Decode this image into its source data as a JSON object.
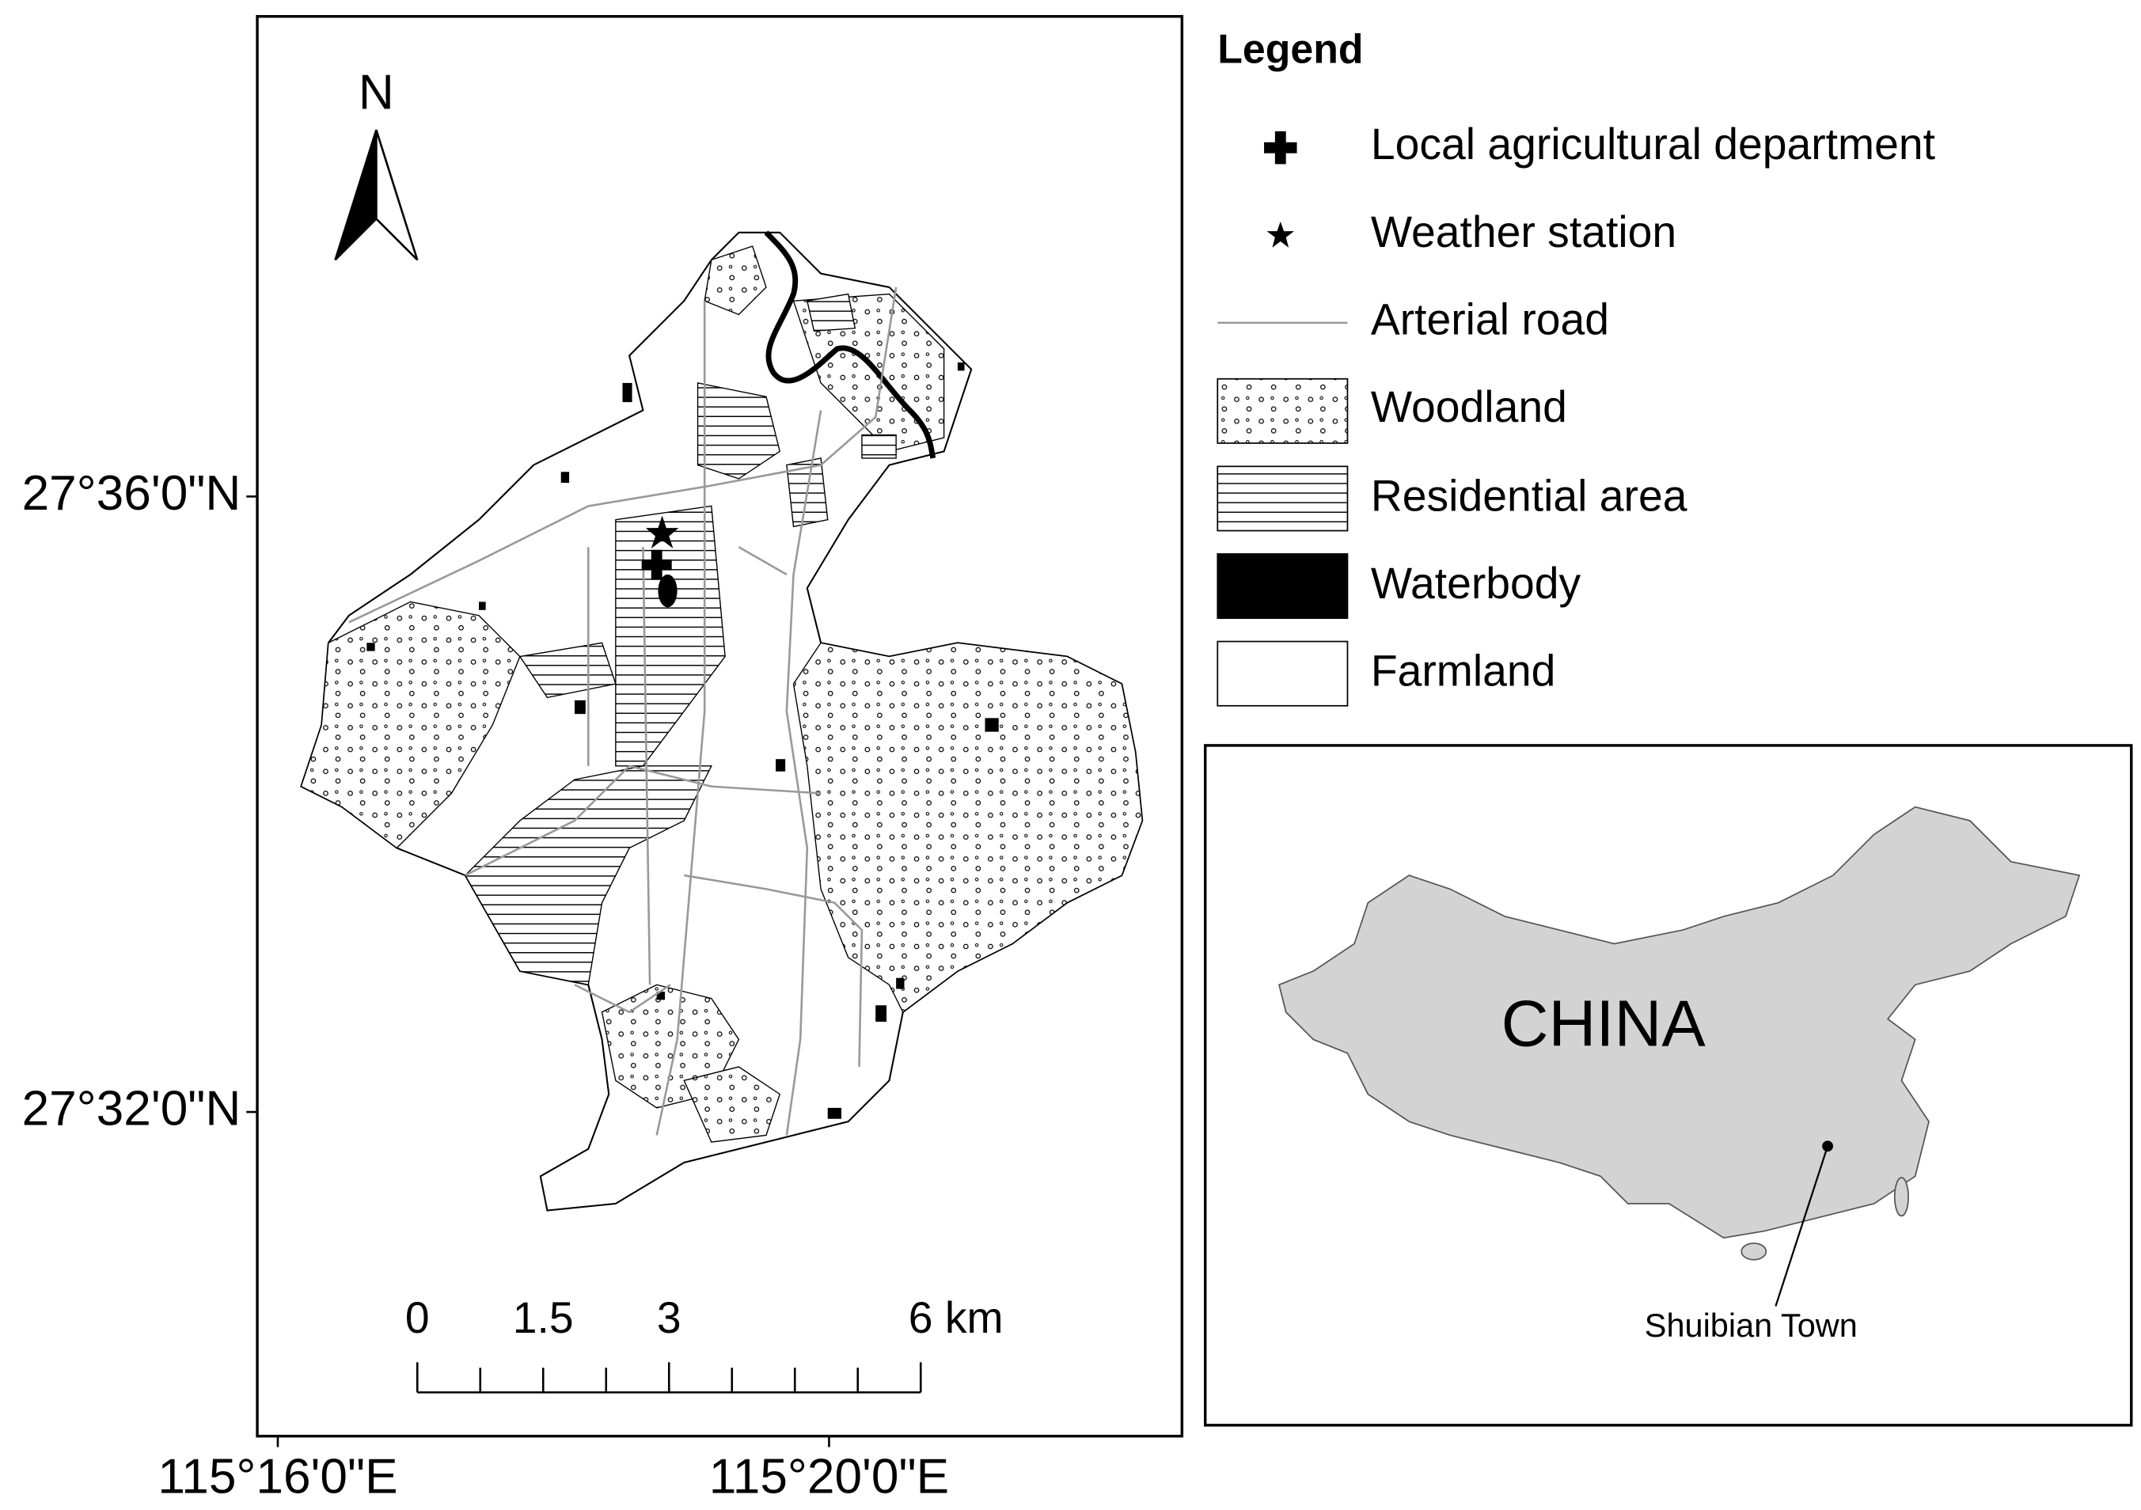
{
  "map": {
    "north": "N",
    "lat_labels": [
      "27°36'0\"N",
      "27°32'0\"N"
    ],
    "lon_labels": [
      "115°16'0\"E",
      "115°20'0\"E"
    ],
    "scale_labels": [
      "0",
      "1.5",
      "3",
      "6 km"
    ]
  },
  "legend": {
    "title": "Legend",
    "items": [
      "Local agricultural department",
      "Weather station",
      "Arterial road",
      "Woodland",
      "Residential area",
      "Waterbody",
      "Farmland"
    ]
  },
  "inset": {
    "label": "CHINA",
    "town": "Shuibian Town"
  }
}
